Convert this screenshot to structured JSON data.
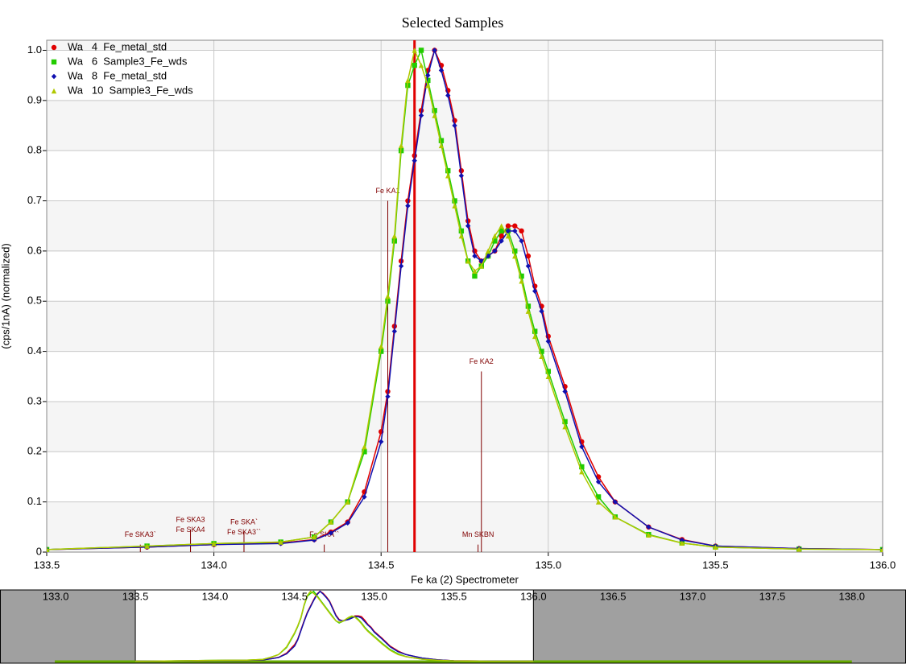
{
  "chart_data": {
    "type": "line",
    "title": "Selected Samples",
    "xlabel": "Fe ka (2) Spectrometer",
    "ylabel": "(cps/1nA) (normalized)",
    "xlim": [
      133.5,
      136.0
    ],
    "ylim": [
      0,
      1.02
    ],
    "xticks": [
      133.5,
      {
        "value": 134.0,
        "label": "134.0"
      },
      134.5,
      {
        "value": 135.0,
        "label": "135.0"
      },
      135.5,
      {
        "value": 136.0,
        "label": "136.0"
      }
    ],
    "yticks": [
      0,
      0.1,
      0.2,
      0.3,
      0.4,
      0.5,
      0.6,
      0.7,
      0.8,
      0.9,
      {
        "value": 1.0,
        "label": "1.0"
      }
    ],
    "grid": true,
    "legend": "upper left",
    "x": [
      133.5,
      133.8,
      134.0,
      134.2,
      134.3,
      134.35,
      134.4,
      134.45,
      134.5,
      134.52,
      134.54,
      134.56,
      134.58,
      134.6,
      134.62,
      134.64,
      134.66,
      134.68,
      134.7,
      134.72,
      134.74,
      134.76,
      134.78,
      134.8,
      134.82,
      134.84,
      134.86,
      134.88,
      134.9,
      134.92,
      134.94,
      134.96,
      134.98,
      135.0,
      135.05,
      135.1,
      135.15,
      135.2,
      135.3,
      135.4,
      135.5,
      135.75,
      136.0
    ],
    "series": [
      {
        "name": "Wa   4  Fe_metal_std",
        "color": "#e00000",
        "marker": "circle",
        "values": [
          0.005,
          0.01,
          0.015,
          0.018,
          0.025,
          0.04,
          0.06,
          0.12,
          0.24,
          0.32,
          0.45,
          0.58,
          0.7,
          0.79,
          0.88,
          0.96,
          1.0,
          0.97,
          0.92,
          0.86,
          0.76,
          0.66,
          0.6,
          0.58,
          0.59,
          0.6,
          0.63,
          0.65,
          0.65,
          0.64,
          0.59,
          0.53,
          0.49,
          0.43,
          0.33,
          0.22,
          0.15,
          0.1,
          0.05,
          0.025,
          0.012,
          0.007,
          0.005
        ]
      },
      {
        "name": "Wa   6  Sample3_Fe_wds",
        "color": "#22cc00",
        "marker": "square",
        "values": [
          0.005,
          0.012,
          0.017,
          0.02,
          0.03,
          0.06,
          0.1,
          0.2,
          0.4,
          0.5,
          0.62,
          0.8,
          0.93,
          0.97,
          1.0,
          0.94,
          0.88,
          0.82,
          0.76,
          0.7,
          0.64,
          0.58,
          0.55,
          0.57,
          0.59,
          0.62,
          0.64,
          0.64,
          0.6,
          0.55,
          0.49,
          0.44,
          0.4,
          0.36,
          0.26,
          0.17,
          0.11,
          0.07,
          0.035,
          0.018,
          0.01,
          0.006,
          0.005
        ]
      },
      {
        "name": "Wa   8  Fe_metal_std",
        "color": "#1010b0",
        "marker": "diamond",
        "values": [
          0.005,
          0.01,
          0.015,
          0.017,
          0.024,
          0.038,
          0.058,
          0.11,
          0.22,
          0.31,
          0.44,
          0.57,
          0.69,
          0.78,
          0.87,
          0.95,
          1.0,
          0.96,
          0.91,
          0.85,
          0.75,
          0.65,
          0.59,
          0.58,
          0.59,
          0.6,
          0.62,
          0.64,
          0.64,
          0.62,
          0.57,
          0.52,
          0.48,
          0.42,
          0.32,
          0.21,
          0.14,
          0.1,
          0.05,
          0.024,
          0.012,
          0.007,
          0.005
        ]
      },
      {
        "name": "Wa   10  Sample3_Fe_wds",
        "color": "#b0c800",
        "marker": "triangle",
        "values": [
          0.005,
          0.012,
          0.017,
          0.02,
          0.03,
          0.06,
          0.1,
          0.21,
          0.41,
          0.51,
          0.63,
          0.81,
          0.94,
          1.0,
          0.97,
          0.93,
          0.87,
          0.81,
          0.75,
          0.69,
          0.63,
          0.58,
          0.56,
          0.57,
          0.6,
          0.63,
          0.65,
          0.63,
          0.59,
          0.54,
          0.48,
          0.43,
          0.39,
          0.35,
          0.25,
          0.16,
          0.1,
          0.07,
          0.034,
          0.018,
          0.01,
          0.006,
          0.005
        ]
      }
    ],
    "cursor_x": 134.6,
    "cursor_color": "#e00000",
    "marker_color": "#800000",
    "markers": [
      {
        "label": "Fe KA1",
        "x": 134.52,
        "y": 0.7
      },
      {
        "label": "Fe KA2",
        "x": 134.8,
        "y": 0.36
      },
      {
        "label": "Mn SKBN",
        "x": 134.79,
        "y": 0.015
      },
      {
        "label": "Fe SKA3`",
        "x": 133.78,
        "y": 0.015
      },
      {
        "label": "Fe SKA3",
        "x": 133.93,
        "y": 0.045
      },
      {
        "label": "Fe SKA4",
        "x": 133.93,
        "y": 0.025
      },
      {
        "label": "Fe SKA`",
        "x": 134.09,
        "y": 0.04
      },
      {
        "label": "Fe SKA3``",
        "x": 134.09,
        "y": 0.02
      },
      {
        "label": "Fe SKA``",
        "x": 134.33,
        "y": 0.015
      }
    ],
    "overview": {
      "xlim": [
        132.65,
        138.34
      ],
      "xticks": [
        {
          "value": 133.0,
          "label": "133.0"
        },
        133.5,
        {
          "value": 134.0,
          "label": "134.0"
        },
        134.5,
        {
          "value": 135.0,
          "label": "135.0"
        },
        135.5,
        {
          "value": 136.0,
          "label": "136.0"
        },
        136.5,
        {
          "value": 137.0,
          "label": "137.0"
        },
        137.5,
        {
          "value": 138.0,
          "label": "138.0"
        }
      ]
    }
  }
}
